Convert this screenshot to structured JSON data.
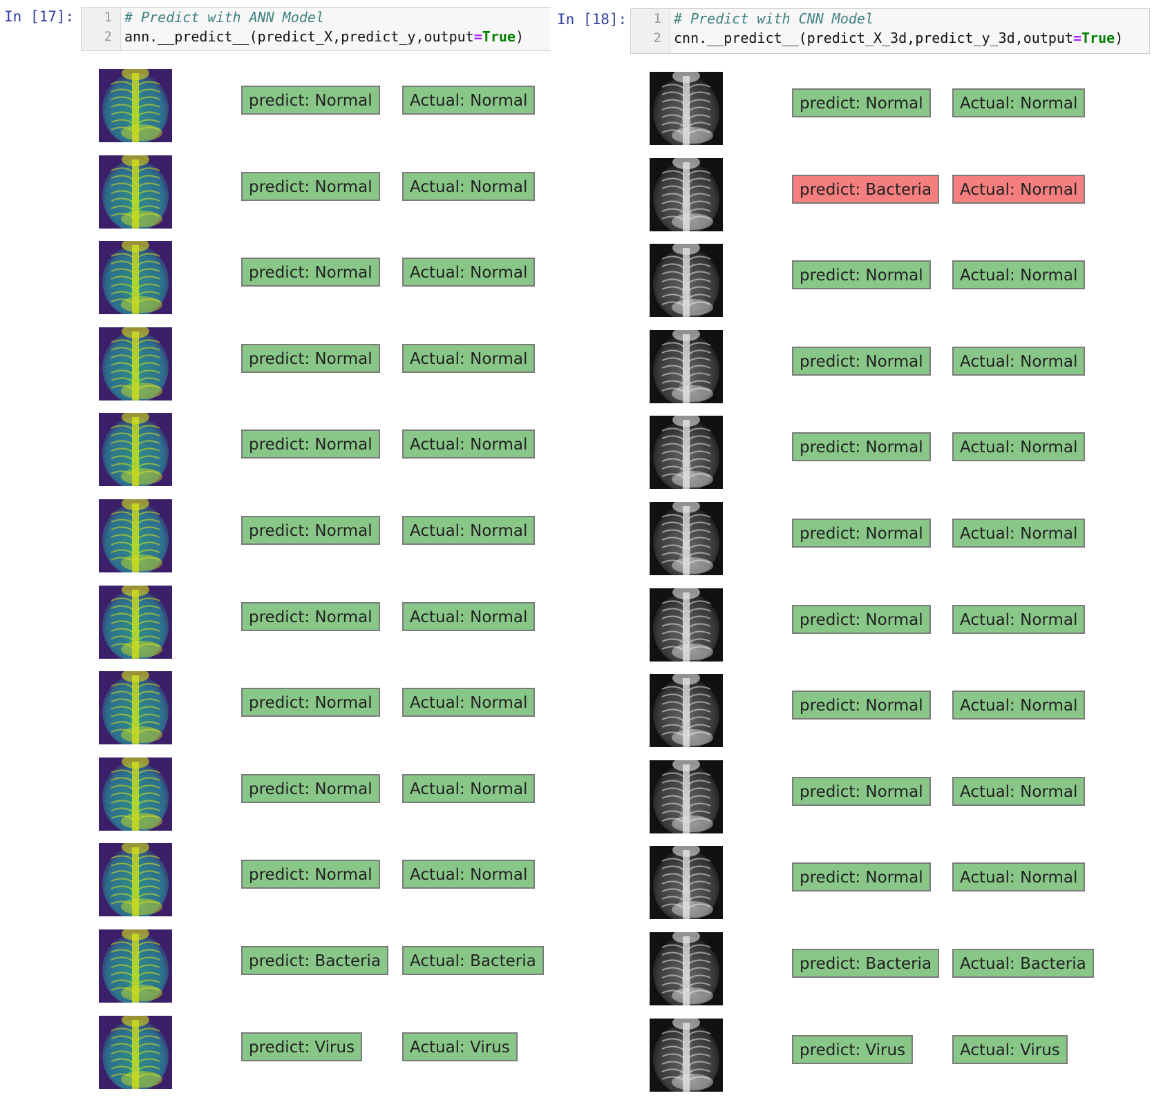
{
  "cells": [
    {
      "id": "ann",
      "prompt": "In [17]:",
      "line_numbers": [
        "1",
        "2"
      ],
      "comment": "# Predict with ANN Model",
      "call_prefix": "ann.__predict__(predict_X,predict_y,output",
      "call_eq": "=",
      "call_true": "True",
      "call_close": ")",
      "image_style": "viridis",
      "rows": [
        {
          "predict": "predict: Normal",
          "actual": "Actual: Normal",
          "match": true
        },
        {
          "predict": "predict: Normal",
          "actual": "Actual: Normal",
          "match": true
        },
        {
          "predict": "predict: Normal",
          "actual": "Actual: Normal",
          "match": true
        },
        {
          "predict": "predict: Normal",
          "actual": "Actual: Normal",
          "match": true
        },
        {
          "predict": "predict: Normal",
          "actual": "Actual: Normal",
          "match": true
        },
        {
          "predict": "predict: Normal",
          "actual": "Actual: Normal",
          "match": true
        },
        {
          "predict": "predict: Normal",
          "actual": "Actual: Normal",
          "match": true
        },
        {
          "predict": "predict: Normal",
          "actual": "Actual: Normal",
          "match": true
        },
        {
          "predict": "predict: Normal",
          "actual": "Actual: Normal",
          "match": true
        },
        {
          "predict": "predict: Normal",
          "actual": "Actual: Normal",
          "match": true
        },
        {
          "predict": "predict: Bacteria",
          "actual": "Actual: Bacteria",
          "match": true
        },
        {
          "predict": "predict: Virus",
          "actual": "Actual: Virus",
          "match": true
        }
      ]
    },
    {
      "id": "cnn",
      "prompt": "In [18]:",
      "line_numbers": [
        "1",
        "2"
      ],
      "comment": "# Predict with CNN Model",
      "call_prefix": "cnn.__predict__(predict_X_3d,predict_y_3d,output",
      "call_eq": "=",
      "call_true": "True",
      "call_close": ")",
      "image_style": "grayscale",
      "rows": [
        {
          "predict": "predict: Normal",
          "actual": "Actual: Normal",
          "match": true
        },
        {
          "predict": "predict: Bacteria",
          "actual": "Actual: Normal",
          "match": false
        },
        {
          "predict": "predict: Normal",
          "actual": "Actual: Normal",
          "match": true
        },
        {
          "predict": "predict: Normal",
          "actual": "Actual: Normal",
          "match": true
        },
        {
          "predict": "predict: Normal",
          "actual": "Actual: Normal",
          "match": true
        },
        {
          "predict": "predict: Normal",
          "actual": "Actual: Normal",
          "match": true
        },
        {
          "predict": "predict: Normal",
          "actual": "Actual: Normal",
          "match": true
        },
        {
          "predict": "predict: Normal",
          "actual": "Actual: Normal",
          "match": true
        },
        {
          "predict": "predict: Normal",
          "actual": "Actual: Normal",
          "match": true
        },
        {
          "predict": "predict: Normal",
          "actual": "Actual: Normal",
          "match": true
        },
        {
          "predict": "predict: Bacteria",
          "actual": "Actual: Bacteria",
          "match": true
        },
        {
          "predict": "predict: Virus",
          "actual": "Actual: Virus",
          "match": true
        }
      ]
    }
  ],
  "colors": {
    "match_label": "#88c788",
    "mismatch_label": "#f57f7f",
    "label_border": "#7a7a7a",
    "prompt": "#303f9f",
    "comment": "#408080",
    "keyword_true": "#008000",
    "operator": "#aa22ff"
  }
}
